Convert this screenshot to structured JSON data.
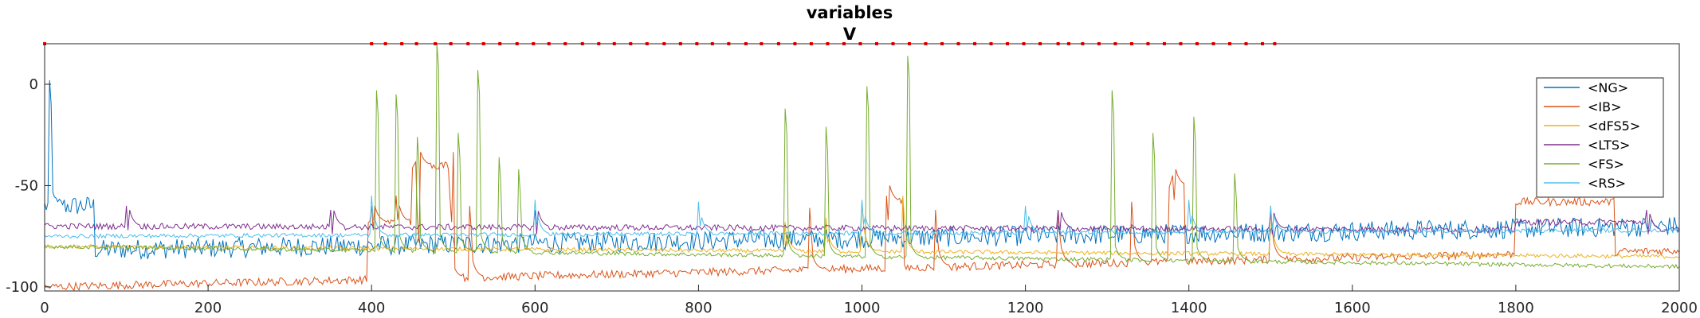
{
  "chart_data": {
    "type": "line",
    "title": "variables",
    "subtitle": "V",
    "xlabel": "",
    "ylabel": "",
    "xlim": [
      0,
      2000
    ],
    "ylim": [
      -102,
      20
    ],
    "xticks": [
      0,
      200,
      400,
      600,
      800,
      1000,
      1200,
      1400,
      1600,
      1800,
      2000
    ],
    "yticks": [
      0,
      -50,
      -100
    ],
    "grid": false,
    "legend_position": "top-right",
    "series": [
      {
        "name": "<NG>",
        "color": "#0072BD",
        "baseline_start": -82,
        "baseline_end": -70,
        "burst": [
          [
            0,
            60,
            -60
          ]
        ],
        "noise": 5,
        "spikes": [
          [
            5,
            8
          ]
        ]
      },
      {
        "name": "<IB>",
        "color": "#D95319",
        "baseline_start": -100,
        "baseline_end": -82,
        "burst": [
          [
            395,
            450,
            -68
          ],
          [
            450,
            500,
            -40
          ],
          [
            1030,
            1050,
            -58
          ],
          [
            1375,
            1395,
            -50
          ],
          [
            1800,
            1920,
            -58
          ]
        ],
        "noise": 2,
        "spikes": [
          [
            400,
            -60
          ],
          [
            430,
            -55
          ],
          [
            455,
            -60
          ],
          [
            495,
            -50
          ],
          [
            520,
            -60
          ],
          [
            935,
            -55
          ],
          [
            1030,
            -55
          ],
          [
            1090,
            -62
          ],
          [
            1240,
            -62
          ],
          [
            1330,
            -58
          ],
          [
            1380,
            -45
          ],
          [
            1500,
            -60
          ]
        ]
      },
      {
        "name": "<dFS5>",
        "color": "#EDB120",
        "baseline_start": -80,
        "baseline_end": -85,
        "burst": [],
        "noise": 1,
        "spikes": [
          [
            905,
            -62
          ],
          [
            955,
            -60
          ],
          [
            1000,
            -58
          ],
          [
            1050,
            -55
          ],
          [
            1500,
            -60
          ]
        ]
      },
      {
        "name": "<LTS>",
        "color": "#7E2F8E",
        "baseline_start": -70,
        "baseline_end": -72,
        "burst": [
          [
            1800,
            1960,
            -68
          ]
        ],
        "noise": 1.5,
        "spikes": [
          [
            100,
            -60
          ],
          [
            350,
            -62
          ],
          [
            600,
            -62
          ],
          [
            1240,
            -62
          ],
          [
            1500,
            -62
          ],
          [
            1960,
            -62
          ]
        ]
      },
      {
        "name": "<FS>",
        "color": "#77AC30",
        "baseline_start": -80,
        "baseline_end": -90,
        "burst": [],
        "noise": 1,
        "spikes": [
          [
            405,
            3
          ],
          [
            430,
            -5
          ],
          [
            455,
            -20
          ],
          [
            480,
            20
          ],
          [
            505,
            -18
          ],
          [
            530,
            7
          ],
          [
            555,
            -30
          ],
          [
            580,
            -42
          ],
          [
            905,
            -6
          ],
          [
            955,
            -15
          ],
          [
            1005,
            5
          ],
          [
            1055,
            20
          ],
          [
            1305,
            3
          ],
          [
            1355,
            -18
          ],
          [
            1405,
            -10
          ],
          [
            1455,
            -38
          ]
        ]
      },
      {
        "name": "<RS>",
        "color": "#4DBEEE",
        "baseline_start": -75,
        "baseline_end": -72,
        "burst": [],
        "noise": 1,
        "spikes": [
          [
            400,
            -55
          ],
          [
            600,
            -57
          ],
          [
            800,
            -58
          ],
          [
            1000,
            -57
          ],
          [
            1200,
            -60
          ],
          [
            1400,
            -57
          ],
          [
            1500,
            -60
          ]
        ]
      }
    ],
    "raster": {
      "color": "#FF0000",
      "y": 20,
      "x": [
        0,
        400,
        417,
        437,
        455,
        478,
        497,
        518,
        537,
        557,
        578,
        598,
        617,
        637,
        658,
        678,
        697,
        717,
        737,
        758,
        778,
        798,
        817,
        837,
        858,
        877,
        898,
        918,
        938,
        958,
        978,
        998,
        1018,
        1038,
        1058,
        1078,
        1098,
        1118,
        1138,
        1158,
        1178,
        1198,
        1218,
        1240,
        1253,
        1270,
        1290,
        1310,
        1330,
        1350,
        1370,
        1390,
        1410,
        1430,
        1450,
        1470,
        1490,
        1505
      ]
    }
  }
}
